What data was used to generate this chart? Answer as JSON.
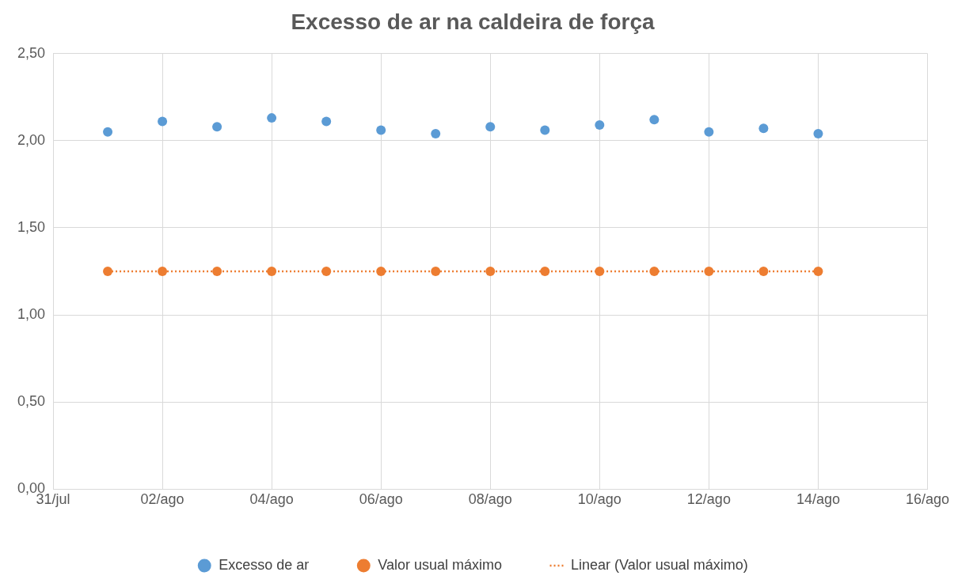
{
  "chart_data": {
    "type": "scatter",
    "title": "Excesso de ar na caldeira de força",
    "x": [
      "--08-01",
      "--08-02",
      "--08-03",
      "--08-04",
      "--08-05",
      "--08-06",
      "--08-07",
      "--08-08",
      "--08-09",
      "--08-10",
      "--08-11",
      "--08-12",
      "--08-13",
      "--08-14"
    ],
    "series": [
      {
        "name": "Excesso de ar",
        "color": "#5b9bd5",
        "values": [
          2.05,
          2.11,
          2.08,
          2.13,
          2.11,
          2.06,
          2.04,
          2.08,
          2.06,
          2.09,
          2.12,
          2.05,
          2.07,
          2.04
        ]
      },
      {
        "name": "Valor usual máximo",
        "color": "#ed7d31",
        "values": [
          1.25,
          1.25,
          1.25,
          1.25,
          1.25,
          1.25,
          1.25,
          1.25,
          1.25,
          1.25,
          1.25,
          1.25,
          1.25,
          1.25
        ]
      },
      {
        "name": "Linear (Valor usual máximo)",
        "type": "line",
        "color": "#ed7d31",
        "line_style": "dotted",
        "marker": "none",
        "x": [
          "--08-01",
          "--08-14"
        ],
        "values": [
          1.25,
          1.25
        ]
      }
    ],
    "marker": "circle",
    "xlim": [
      "--07-31",
      "--08-16"
    ],
    "xticks": [
      {
        "value": "--07-31",
        "label": "31/jul"
      },
      {
        "value": "--08-02",
        "label": "02/ago"
      },
      {
        "value": "--08-04",
        "label": "04/ago"
      },
      {
        "value": "--08-06",
        "label": "06/ago"
      },
      {
        "value": "--08-08",
        "label": "08/ago"
      },
      {
        "value": "--08-10",
        "label": "10/ago"
      },
      {
        "value": "--08-12",
        "label": "12/ago"
      },
      {
        "value": "--08-14",
        "label": "14/ago"
      },
      {
        "value": "--08-16",
        "label": "16/ago"
      }
    ],
    "ylim": [
      0,
      2.5
    ],
    "yticks": [
      {
        "value": 0,
        "label": "0,00"
      },
      {
        "value": 0.5,
        "label": "0,50"
      },
      {
        "value": 1,
        "label": "1,00"
      },
      {
        "value": 1.5,
        "label": "1,50"
      },
      {
        "value": 2,
        "label": "2,00"
      },
      {
        "value": 2.5,
        "label": "2,50"
      }
    ],
    "grid": true,
    "legend": "bottom"
  }
}
